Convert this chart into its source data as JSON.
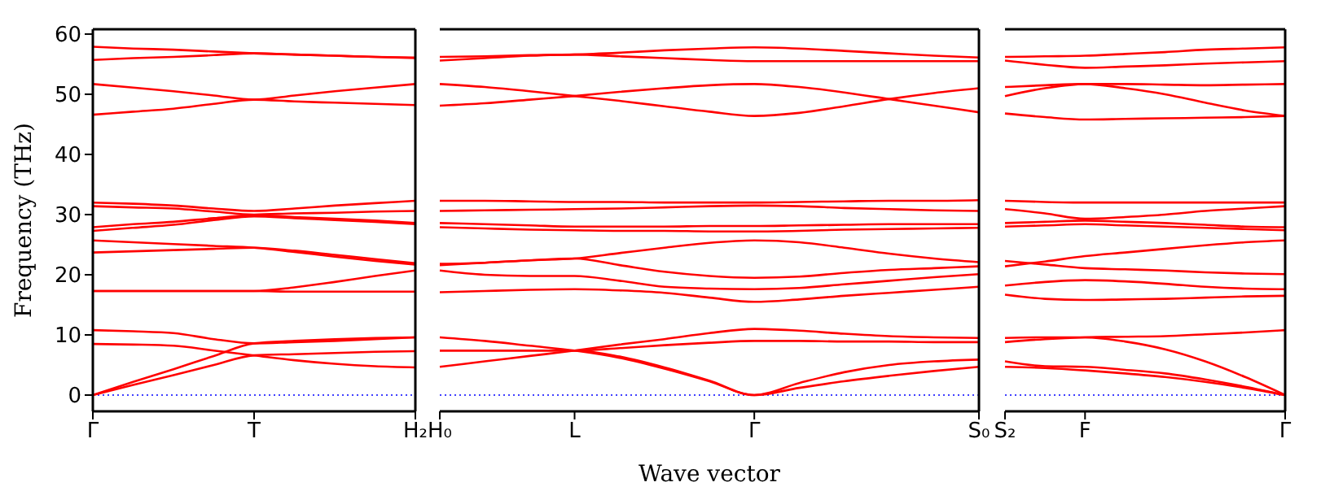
{
  "chart_data": [
    {
      "type": "line",
      "ylabel": "Frequency (THz)",
      "categories": [
        "Γ",
        null,
        null,
        null,
        "T",
        null,
        null,
        null,
        "H₂"
      ],
      "ylim": [
        -2.7,
        60.8
      ],
      "yticks": [
        0,
        10,
        20,
        30,
        40,
        50,
        60
      ],
      "grid": false,
      "ref_lines": [
        {
          "axis": "y",
          "value": 0,
          "color": "#0000ff",
          "line_style": "dotted"
        }
      ],
      "series": [
        {
          "color": "#ff0000",
          "values": [
            0,
            1.7,
            3.3,
            5.0,
            6.6,
            6.8,
            7.0,
            7.2,
            7.3
          ]
        },
        {
          "color": "#ff0000",
          "values": [
            0,
            2.2,
            4.3,
            6.5,
            8.6,
            9.0,
            9.3,
            9.5,
            9.6
          ]
        },
        {
          "color": "#ff0000",
          "values": [
            8.5,
            8.4,
            8.2,
            7.4,
            6.6,
            5.8,
            5.2,
            4.8,
            4.6
          ]
        },
        {
          "color": "#ff0000",
          "values": [
            10.8,
            10.6,
            10.3,
            9.3,
            8.6,
            8.8,
            9.0,
            9.3,
            9.6
          ]
        },
        {
          "color": "#ff0000",
          "values": [
            17.3,
            17.3,
            17.3,
            17.3,
            17.3,
            17.2,
            17.2,
            17.2,
            17.2
          ]
        },
        {
          "color": "#ff0000",
          "values": [
            17.3,
            17.3,
            17.3,
            17.3,
            17.3,
            17.9,
            18.8,
            19.8,
            20.7
          ]
        },
        {
          "color": "#ff0000",
          "values": [
            23.7,
            23.9,
            24.1,
            24.3,
            24.5,
            24.0,
            23.3,
            22.6,
            21.9
          ]
        },
        {
          "color": "#ff0000",
          "values": [
            25.7,
            25.4,
            25.1,
            24.8,
            24.5,
            23.8,
            23.0,
            22.3,
            21.7
          ]
        },
        {
          "color": "#ff0000",
          "values": [
            32.0,
            31.8,
            31.5,
            31.0,
            30.6,
            31.0,
            31.5,
            31.9,
            32.3
          ]
        },
        {
          "color": "#ff0000",
          "values": [
            31.4,
            31.2,
            31.0,
            30.5,
            30.0,
            30.2,
            30.3,
            30.5,
            30.6
          ]
        },
        {
          "color": "#ff0000",
          "values": [
            27.9,
            28.4,
            28.8,
            29.4,
            29.9,
            29.6,
            29.3,
            29.0,
            28.6
          ]
        },
        {
          "color": "#ff0000",
          "values": [
            27.3,
            27.8,
            28.3,
            29.1,
            29.7,
            29.4,
            29.1,
            28.8,
            28.4
          ]
        },
        {
          "color": "#ff0000",
          "values": [
            57.9,
            57.6,
            57.4,
            57.1,
            56.8,
            56.6,
            56.4,
            56.2,
            56.1
          ]
        },
        {
          "color": "#ff0000",
          "values": [
            55.7,
            56.0,
            56.2,
            56.5,
            56.8,
            56.6,
            56.4,
            56.2,
            56.0
          ]
        },
        {
          "color": "#ff0000",
          "values": [
            51.7,
            51.1,
            50.5,
            49.8,
            49.1,
            49.8,
            50.5,
            51.1,
            51.7
          ]
        },
        {
          "color": "#ff0000",
          "values": [
            46.6,
            47.1,
            47.6,
            48.4,
            49.1,
            48.8,
            48.6,
            48.4,
            48.2
          ]
        }
      ]
    },
    {
      "type": "line",
      "xlabel": "Wave vector",
      "tick_labels": "x",
      "categories": [
        "H₀",
        null,
        null,
        "L",
        null,
        null,
        null,
        "Γ",
        null,
        null,
        null,
        null,
        "S₀"
      ],
      "ylim": [
        -2.7,
        60.8
      ],
      "yticks": [
        0,
        10,
        20,
        30,
        40,
        50,
        60
      ],
      "grid": false,
      "ref_lines": [
        {
          "axis": "y",
          "value": 0,
          "color": "#0000ff",
          "line_style": "dotted"
        }
      ],
      "series": [
        {
          "color": "#ff0000",
          "values": [
            9.6,
            9.0,
            8.2,
            7.4,
            6.2,
            4.4,
            2.3,
            0,
            1.2,
            2.3,
            3.2,
            4.0,
            4.7
          ]
        },
        {
          "color": "#ff0000",
          "values": [
            7.4,
            7.4,
            7.4,
            7.4,
            6.4,
            4.6,
            2.4,
            0,
            2.0,
            3.8,
            5.0,
            5.6,
            5.9
          ]
        },
        {
          "color": "#ff0000",
          "values": [
            4.7,
            5.6,
            6.5,
            7.4,
            8.4,
            9.3,
            10.3,
            11.0,
            10.7,
            10.2,
            9.8,
            9.6,
            9.5
          ]
        },
        {
          "color": "#ff0000",
          "values": [
            7.4,
            7.4,
            7.4,
            7.4,
            7.8,
            8.3,
            8.7,
            9.0,
            9.0,
            8.9,
            8.9,
            8.8,
            8.8
          ]
        },
        {
          "color": "#ff0000",
          "values": [
            17.1,
            17.3,
            17.5,
            17.6,
            17.4,
            17.0,
            16.2,
            15.5,
            15.9,
            16.5,
            17.0,
            17.5,
            18.0
          ]
        },
        {
          "color": "#ff0000",
          "values": [
            20.7,
            20.0,
            19.8,
            19.8,
            19.0,
            18.0,
            17.7,
            17.6,
            17.8,
            18.4,
            19.0,
            19.6,
            20.1
          ]
        },
        {
          "color": "#ff0000",
          "values": [
            21.8,
            22.0,
            22.4,
            22.7,
            21.6,
            20.5,
            19.8,
            19.5,
            19.7,
            20.3,
            20.8,
            21.1,
            21.4
          ]
        },
        {
          "color": "#ff0000",
          "values": [
            21.6,
            22.0,
            22.4,
            22.7,
            23.6,
            24.5,
            25.3,
            25.7,
            25.4,
            24.5,
            23.5,
            22.7,
            22.1
          ]
        },
        {
          "color": "#ff0000",
          "values": [
            32.3,
            32.3,
            32.2,
            32.1,
            32.1,
            32.0,
            32.0,
            32.0,
            32.1,
            32.2,
            32.3,
            32.3,
            32.4
          ]
        },
        {
          "color": "#ff0000",
          "values": [
            30.6,
            30.7,
            30.8,
            30.9,
            31.0,
            31.2,
            31.4,
            31.5,
            31.4,
            31.1,
            30.9,
            30.7,
            30.6
          ]
        },
        {
          "color": "#ff0000",
          "values": [
            28.6,
            28.4,
            28.2,
            28.0,
            28.0,
            28.0,
            28.1,
            28.1,
            28.2,
            28.3,
            28.4,
            28.4,
            28.4
          ]
        },
        {
          "color": "#ff0000",
          "values": [
            27.9,
            27.7,
            27.5,
            27.4,
            27.3,
            27.3,
            27.2,
            27.2,
            27.3,
            27.5,
            27.6,
            27.7,
            27.8
          ]
        },
        {
          "color": "#ff0000",
          "values": [
            56.2,
            56.3,
            56.5,
            56.6,
            56.9,
            57.3,
            57.6,
            57.8,
            57.6,
            57.2,
            56.8,
            56.4,
            56.1
          ]
        },
        {
          "color": "#ff0000",
          "values": [
            55.6,
            56.0,
            56.4,
            56.6,
            56.3,
            56.0,
            55.7,
            55.5,
            55.5,
            55.5,
            55.5,
            55.5,
            55.5
          ]
        },
        {
          "color": "#ff0000",
          "values": [
            51.7,
            51.2,
            50.5,
            49.7,
            48.9,
            48.0,
            47.1,
            46.4,
            46.9,
            48.0,
            49.2,
            50.2,
            51.0
          ]
        },
        {
          "color": "#ff0000",
          "values": [
            48.1,
            48.5,
            49.1,
            49.7,
            50.4,
            51.0,
            51.5,
            51.7,
            51.2,
            50.3,
            49.2,
            48.1,
            47.0
          ]
        }
      ]
    },
    {
      "type": "line",
      "tick_labels": "x",
      "categories": [
        "S₂",
        null,
        "F",
        null,
        null,
        null,
        null,
        "Γ"
      ],
      "ylim": [
        -2.7,
        60.8
      ],
      "yticks": [
        0,
        10,
        20,
        30,
        40,
        50,
        60
      ],
      "grid": false,
      "ref_lines": [
        {
          "axis": "y",
          "value": 0,
          "color": "#0000ff",
          "line_style": "dotted"
        }
      ],
      "series": [
        {
          "color": "#ff0000",
          "values": [
            4.7,
            4.5,
            4.1,
            3.6,
            3.0,
            2.2,
            1.2,
            0
          ]
        },
        {
          "color": "#ff0000",
          "values": [
            5.6,
            4.8,
            4.7,
            4.2,
            3.6,
            2.6,
            1.4,
            0
          ]
        },
        {
          "color": "#ff0000",
          "values": [
            9.5,
            9.6,
            9.6,
            8.9,
            7.6,
            5.6,
            3.0,
            0
          ]
        },
        {
          "color": "#ff0000",
          "values": [
            8.8,
            9.3,
            9.6,
            9.7,
            9.8,
            10.1,
            10.4,
            10.8
          ]
        },
        {
          "color": "#ff0000",
          "values": [
            16.7,
            16.0,
            15.8,
            15.9,
            16.0,
            16.2,
            16.4,
            16.5
          ]
        },
        {
          "color": "#ff0000",
          "values": [
            18.2,
            18.8,
            19.1,
            18.9,
            18.5,
            18.0,
            17.7,
            17.6
          ]
        },
        {
          "color": "#ff0000",
          "values": [
            21.4,
            22.2,
            23.1,
            23.7,
            24.3,
            24.9,
            25.4,
            25.7
          ]
        },
        {
          "color": "#ff0000",
          "values": [
            22.3,
            21.7,
            21.1,
            20.9,
            20.7,
            20.4,
            20.2,
            20.1
          ]
        },
        {
          "color": "#ff0000",
          "values": [
            32.3,
            32.1,
            32.0,
            32.0,
            32.0,
            32.0,
            32.0,
            32.0
          ]
        },
        {
          "color": "#ff0000",
          "values": [
            30.9,
            30.2,
            29.3,
            29.6,
            30.0,
            30.6,
            31.0,
            31.4
          ]
        },
        {
          "color": "#ff0000",
          "values": [
            28.6,
            28.8,
            29.0,
            28.8,
            28.6,
            28.3,
            28.0,
            27.9
          ]
        },
        {
          "color": "#ff0000",
          "values": [
            28.0,
            28.2,
            28.4,
            28.2,
            28.0,
            27.8,
            27.6,
            27.4
          ]
        },
        {
          "color": "#ff0000",
          "values": [
            56.2,
            56.3,
            56.4,
            56.7,
            57.0,
            57.4,
            57.6,
            57.8
          ]
        },
        {
          "color": "#ff0000",
          "values": [
            55.6,
            54.9,
            54.4,
            54.6,
            54.8,
            55.1,
            55.3,
            55.5
          ]
        },
        {
          "color": "#ff0000",
          "values": [
            51.2,
            51.5,
            51.7,
            51.7,
            51.6,
            51.5,
            51.6,
            51.7
          ]
        },
        {
          "color": "#ff0000",
          "values": [
            49.7,
            51.0,
            51.7,
            51.0,
            50.0,
            48.6,
            47.3,
            46.4
          ]
        },
        {
          "color": "#ff0000",
          "values": [
            46.8,
            46.2,
            45.8,
            45.9,
            46.0,
            46.1,
            46.2,
            46.4
          ]
        }
      ]
    }
  ]
}
